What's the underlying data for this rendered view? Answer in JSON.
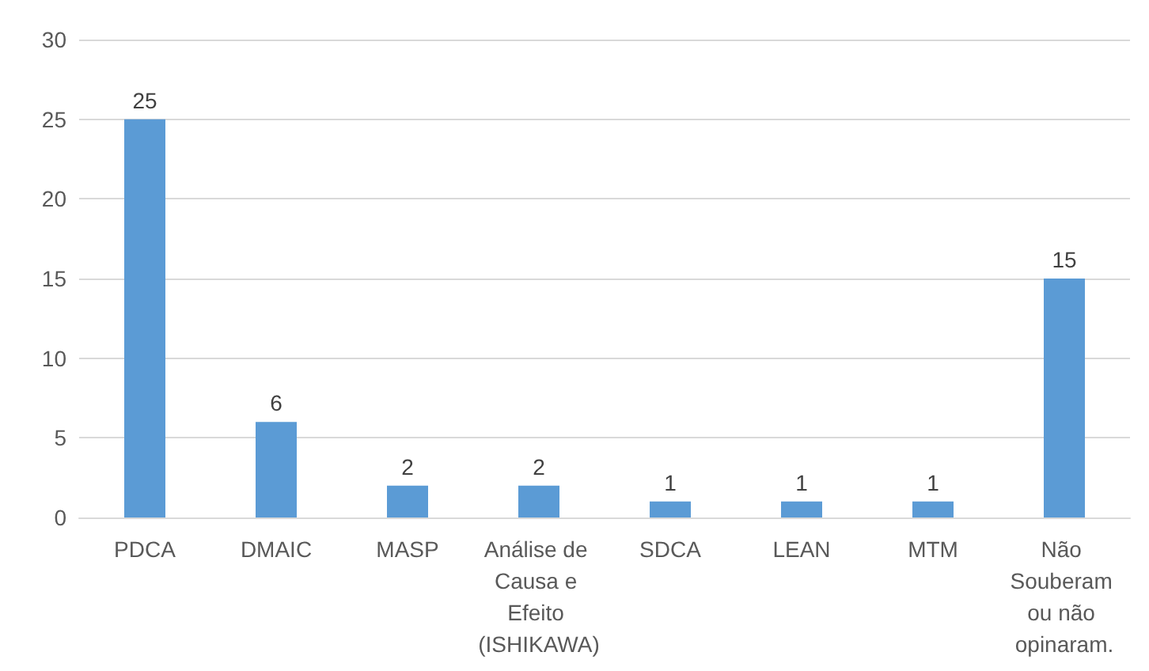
{
  "chart_data": {
    "type": "bar",
    "categories": [
      "PDCA",
      "DMAIC",
      "MASP",
      "Análise de Causa e Efeito (ISHIKAWA)",
      "SDCA",
      "LEAN",
      "MTM",
      "Não Souberam ou não opinaram."
    ],
    "values": [
      25,
      6,
      2,
      2,
      1,
      1,
      1,
      15
    ],
    "color": "#5b9bd5",
    "ylim": [
      0,
      30
    ],
    "yticks": [
      0,
      5,
      10,
      15,
      20,
      25,
      30
    ],
    "grid": "y",
    "data_labels": true
  }
}
